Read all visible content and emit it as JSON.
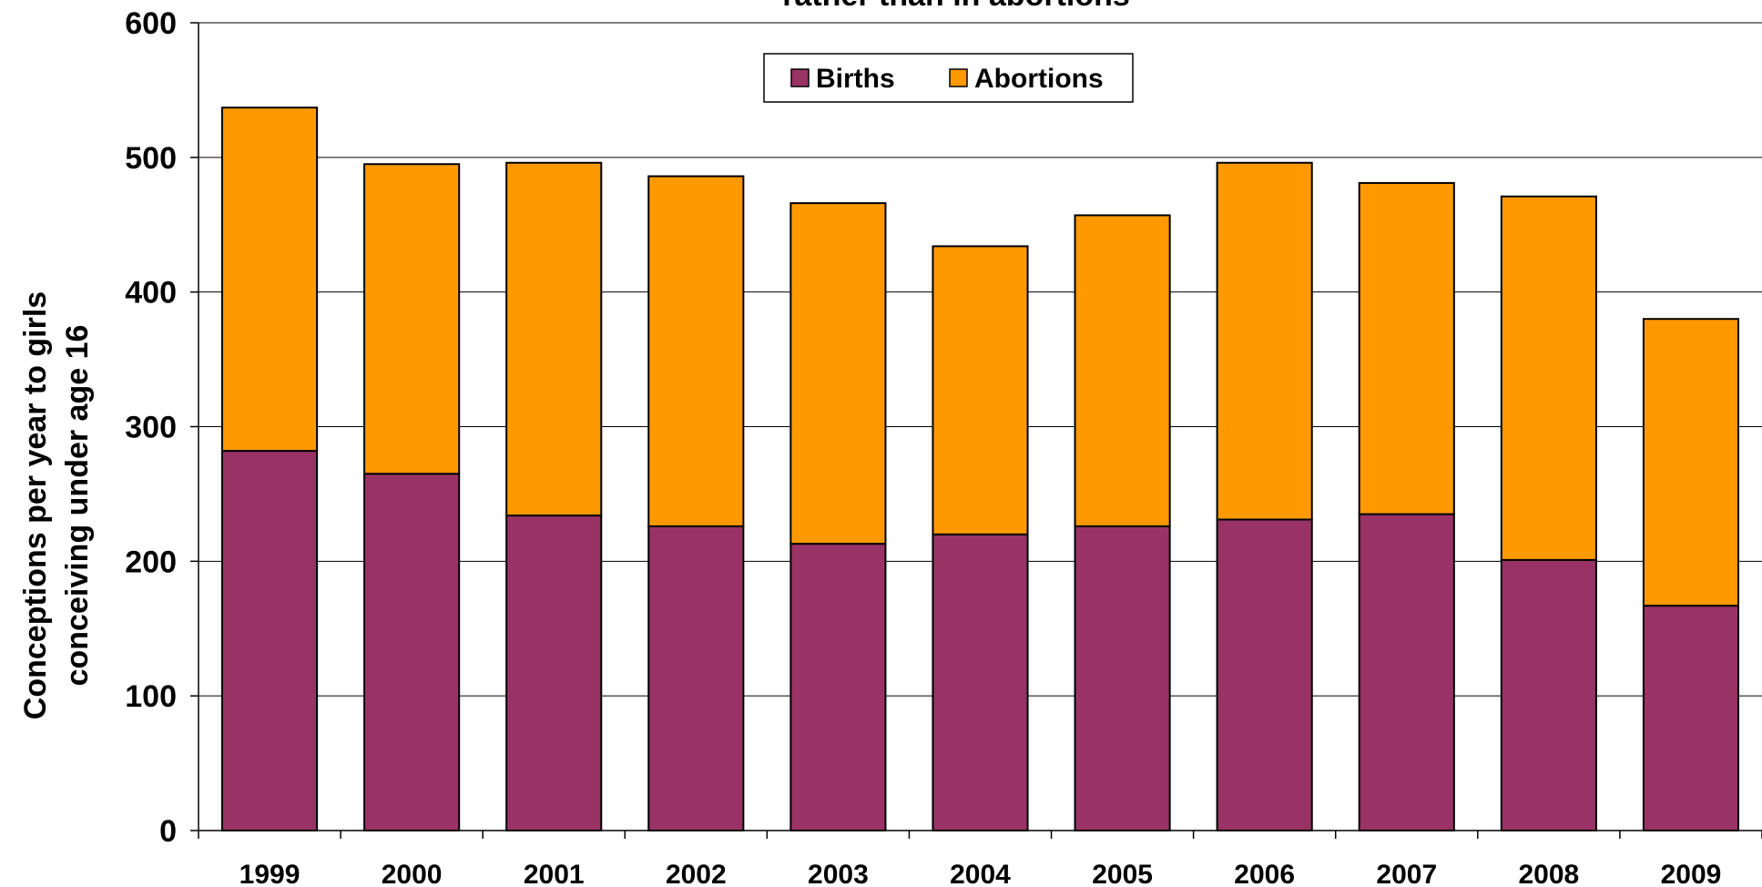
{
  "chart_data": {
    "type": "bar",
    "stacked": true,
    "title": "rather than in abortions",
    "ylabel_lines": [
      "Conceptions per year to girls",
      "conceiving under age 16"
    ],
    "xlabel": "",
    "categories": [
      "1999",
      "2000",
      "2001",
      "2002",
      "2003",
      "2004",
      "2005",
      "2006",
      "2007",
      "2008",
      "2009"
    ],
    "series": [
      {
        "name": "Births",
        "color": "#993366",
        "values": [
          282,
          265,
          234,
          226,
          213,
          220,
          226,
          231,
          235,
          201,
          167
        ]
      },
      {
        "name": "Abortions",
        "color": "#FF9900",
        "values": [
          255,
          230,
          262,
          260,
          253,
          214,
          231,
          265,
          246,
          270,
          213
        ]
      }
    ],
    "ylim": [
      0,
      600
    ],
    "yticks": [
      0,
      100,
      200,
      300,
      400,
      500,
      600
    ],
    "grid": true,
    "legend_position": "top-center"
  }
}
